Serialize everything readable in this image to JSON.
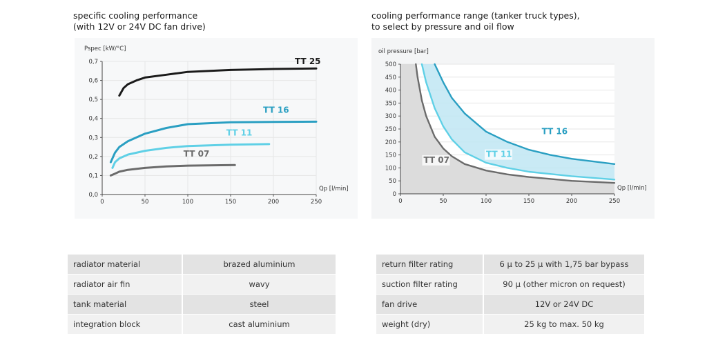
{
  "left": {
    "title_line1": "specific cooling performance",
    "title_line2": "(with 12V or 24V DC fan drive)"
  },
  "right": {
    "title_line1": "cooling performance range (tanker truck types),",
    "title_line2": "to select by pressure and oil flow"
  },
  "colors": {
    "tt25": "#1a1a1a",
    "tt16": "#2a9fc2",
    "tt11": "#5fd0e6",
    "tt07": "#6b6b6b",
    "area": "#bfe6f3",
    "grayfill": "#dcdcdc"
  },
  "chart_data": [
    {
      "type": "line",
      "title": "specific cooling performance (with 12V or 24V DC fan drive)",
      "xlabel": "Qp [l/min]",
      "ylabel": "Pspec [kW/°C]",
      "xlim": [
        0,
        250
      ],
      "ylim": [
        0,
        0.7
      ],
      "xticks": [
        "0",
        "50",
        "100",
        "150",
        "200",
        "250"
      ],
      "yticks": [
        "0,0",
        "0,1",
        "0,2",
        "0,3",
        "0,4",
        "0,5",
        "0,6",
        "0,7"
      ],
      "series": [
        {
          "name": "TT 25",
          "color_key": "tt25",
          "x": [
            20,
            25,
            30,
            40,
            50,
            75,
            100,
            150,
            200,
            250
          ],
          "y": [
            0.52,
            0.56,
            0.58,
            0.6,
            0.615,
            0.63,
            0.645,
            0.655,
            0.66,
            0.663
          ]
        },
        {
          "name": "TT 16",
          "color_key": "tt16",
          "x": [
            10,
            15,
            20,
            30,
            40,
            50,
            75,
            100,
            150,
            200,
            250
          ],
          "y": [
            0.17,
            0.22,
            0.25,
            0.28,
            0.3,
            0.32,
            0.35,
            0.37,
            0.38,
            0.382,
            0.383
          ]
        },
        {
          "name": "TT 11",
          "color_key": "tt11",
          "x": [
            12,
            15,
            20,
            30,
            50,
            75,
            100,
            150,
            195
          ],
          "y": [
            0.14,
            0.17,
            0.19,
            0.21,
            0.23,
            0.245,
            0.255,
            0.262,
            0.265
          ]
        },
        {
          "name": "TT 07",
          "color_key": "tt07",
          "x": [
            10,
            15,
            20,
            30,
            50,
            75,
            100,
            155
          ],
          "y": [
            0.1,
            0.11,
            0.12,
            0.13,
            0.14,
            0.148,
            0.152,
            0.155
          ]
        }
      ],
      "labels": [
        {
          "text": "TT 25",
          "color_key": "tt25",
          "x": 225,
          "y": 0.685
        },
        {
          "text": "TT 16",
          "color_key": "tt16",
          "x": 188,
          "y": 0.43
        },
        {
          "text": "TT 11",
          "color_key": "tt11",
          "x": 145,
          "y": 0.31
        },
        {
          "text": "TT 07",
          "color_key": "tt07",
          "x": 95,
          "y": 0.2
        }
      ]
    },
    {
      "type": "area",
      "title": "cooling performance range (tanker truck types), to select by pressure and oil flow",
      "xlabel": "Qp [l/min]",
      "ylabel": "oil pressure [bar]",
      "xlim": [
        0,
        250
      ],
      "ylim": [
        0,
        500
      ],
      "xticks": [
        "0",
        "50",
        "100",
        "150",
        "200",
        "250"
      ],
      "yticks": [
        "0",
        "50",
        "100",
        "150",
        "200",
        "250",
        "300",
        "350",
        "400",
        "450",
        "500"
      ],
      "series": [
        {
          "name": "TT 16",
          "color_key": "tt16",
          "x": [
            40,
            50,
            60,
            75,
            100,
            125,
            150,
            175,
            200,
            250
          ],
          "y": [
            500,
            430,
            370,
            310,
            240,
            200,
            170,
            150,
            135,
            115
          ]
        },
        {
          "name": "TT 11",
          "color_key": "tt11",
          "x": [
            25,
            30,
            40,
            50,
            60,
            75,
            100,
            125,
            150,
            200,
            250
          ],
          "y": [
            500,
            430,
            330,
            260,
            210,
            160,
            120,
            100,
            85,
            68,
            55
          ]
        },
        {
          "name": "TT 07",
          "color_key": "tt07",
          "x": [
            18,
            20,
            25,
            30,
            40,
            50,
            60,
            75,
            100,
            125,
            150,
            200,
            250
          ],
          "y": [
            500,
            450,
            360,
            300,
            220,
            175,
            145,
            115,
            90,
            75,
            65,
            50,
            42
          ]
        }
      ],
      "labels": [
        {
          "text": "TT 16",
          "color_key": "tt16",
          "x": 165,
          "y": 230
        },
        {
          "text": "TT 11",
          "color_key": "tt11",
          "x": 100,
          "y": 142
        },
        {
          "text": "TT 07",
          "color_key": "tt07",
          "x": 27,
          "y": 120
        }
      ]
    }
  ],
  "spec_left": [
    {
      "label": "radiator material",
      "value": "brazed aluminium"
    },
    {
      "label": "radiator air fin",
      "value": "wavy"
    },
    {
      "label": "tank material",
      "value": "steel"
    },
    {
      "label": "integration block",
      "value": "cast aluminium"
    }
  ],
  "spec_right": [
    {
      "label": "return filter rating",
      "value": "6 µ to 25 µ with 1,75 bar bypass"
    },
    {
      "label": "suction filter rating",
      "value": "90 µ (other micron on request)"
    },
    {
      "label": "fan drive",
      "value": "12V or 24V DC"
    },
    {
      "label": "weight (dry)",
      "value": "25 kg to max. 50 kg"
    }
  ]
}
